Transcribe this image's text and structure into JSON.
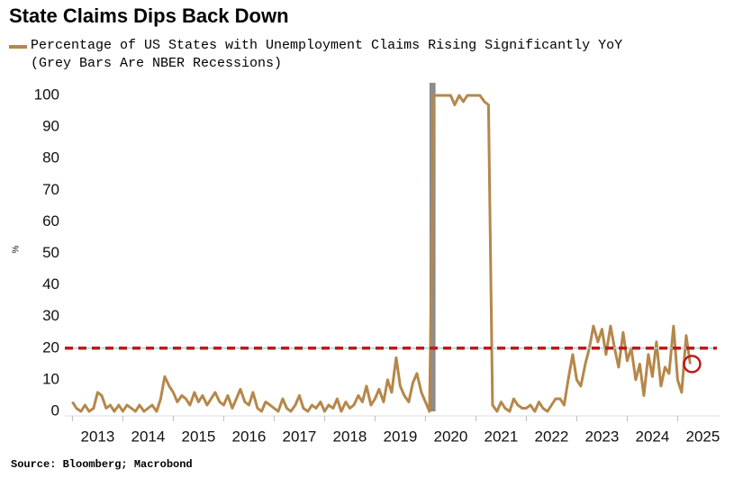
{
  "chart_data": {
    "type": "line",
    "title": "State Claims Dips Back Down",
    "subtitle": "(Grey Bars Are NBER Recessions)",
    "ylabel": "%",
    "source": "Source: Bloomberg; Macrobond",
    "recessions": [
      {
        "start": 2020.08,
        "end": 2020.2,
        "color": "#8c8c8c"
      }
    ],
    "reference_line": {
      "value": 20,
      "color": "#c0191b"
    },
    "xlim": [
      2012.85,
      2025.85
    ],
    "xticks": [
      {
        "value": 2013,
        "label": "2013"
      },
      {
        "value": 2014,
        "label": "2014"
      },
      {
        "value": 2015,
        "label": "2015"
      },
      {
        "value": 2016,
        "label": "2016"
      },
      {
        "value": 2017,
        "label": "2017"
      },
      {
        "value": 2018,
        "label": "2018"
      },
      {
        "value": 2019,
        "label": "2019"
      },
      {
        "value": 2020,
        "label": "2020"
      },
      {
        "value": 2021,
        "label": "2021"
      },
      {
        "value": 2022,
        "label": "2022"
      },
      {
        "value": 2023,
        "label": "2023"
      },
      {
        "value": 2024,
        "label": "2024"
      },
      {
        "value": 2025,
        "label": "2025"
      }
    ],
    "ylim": [
      0,
      100
    ],
    "yticks": [
      0,
      10,
      20,
      30,
      40,
      50,
      60,
      70,
      80,
      90,
      100
    ],
    "series": [
      {
        "name": "Percentage of US States with Unemployment Claims Rising Significantly YoY",
        "color": "#b5874a",
        "x": [
          2013.0,
          2013.08,
          2013.17,
          2013.25,
          2013.33,
          2013.42,
          2013.5,
          2013.58,
          2013.67,
          2013.75,
          2013.83,
          2013.92,
          2014.0,
          2014.08,
          2014.17,
          2014.25,
          2014.33,
          2014.42,
          2014.5,
          2014.58,
          2014.67,
          2014.75,
          2014.83,
          2014.92,
          2015.0,
          2015.08,
          2015.17,
          2015.25,
          2015.33,
          2015.42,
          2015.5,
          2015.58,
          2015.67,
          2015.75,
          2015.83,
          2015.92,
          2016.0,
          2016.08,
          2016.17,
          2016.25,
          2016.33,
          2016.42,
          2016.5,
          2016.58,
          2016.67,
          2016.75,
          2016.83,
          2016.92,
          2017.0,
          2017.08,
          2017.17,
          2017.25,
          2017.33,
          2017.42,
          2017.5,
          2017.58,
          2017.67,
          2017.75,
          2017.83,
          2017.92,
          2018.0,
          2018.08,
          2018.17,
          2018.25,
          2018.33,
          2018.42,
          2018.5,
          2018.58,
          2018.67,
          2018.75,
          2018.83,
          2018.92,
          2019.0,
          2019.08,
          2019.17,
          2019.25,
          2019.33,
          2019.42,
          2019.5,
          2019.58,
          2019.67,
          2019.75,
          2019.83,
          2019.92,
          2020.0,
          2020.08,
          2020.17,
          2020.25,
          2020.33,
          2020.42,
          2020.5,
          2020.58,
          2020.67,
          2020.75,
          2020.83,
          2020.92,
          2021.0,
          2021.08,
          2021.17,
          2021.25,
          2021.33,
          2021.42,
          2021.5,
          2021.58,
          2021.67,
          2021.75,
          2021.83,
          2021.92,
          2022.0,
          2022.08,
          2022.17,
          2022.25,
          2022.33,
          2022.42,
          2022.5,
          2022.58,
          2022.67,
          2022.75,
          2022.83,
          2022.92,
          2023.0,
          2023.08,
          2023.17,
          2023.25,
          2023.33,
          2023.42,
          2023.5,
          2023.58,
          2023.67,
          2023.75,
          2023.83,
          2023.92,
          2024.0,
          2024.08,
          2024.17,
          2024.25,
          2024.33,
          2024.42,
          2024.5,
          2024.58,
          2024.67,
          2024.75,
          2024.83,
          2024.92,
          2025.0,
          2025.08,
          2025.17,
          2025.25
        ],
        "values": [
          3,
          1,
          0,
          2,
          0,
          1,
          6,
          5,
          1,
          2,
          0,
          2,
          0,
          2,
          1,
          0,
          2,
          0,
          1,
          2,
          0,
          4,
          11,
          8,
          6,
          3,
          5,
          4,
          2,
          6,
          3,
          5,
          2,
          4,
          6,
          3,
          2,
          5,
          1,
          4,
          7,
          3,
          2,
          6,
          1,
          0,
          3,
          2,
          1,
          0,
          4,
          1,
          0,
          2,
          5,
          1,
          0,
          2,
          1,
          3,
          0,
          2,
          1,
          4,
          0,
          3,
          1,
          2,
          5,
          3,
          8,
          2,
          4,
          7,
          3,
          10,
          6,
          17,
          8,
          5,
          3,
          9,
          12,
          6,
          3,
          0,
          100,
          100,
          100,
          100,
          100,
          97,
          100,
          98,
          100,
          100,
          100,
          100,
          98,
          97,
          2,
          0,
          3,
          1,
          0,
          4,
          2,
          1,
          1,
          2,
          0,
          3,
          1,
          0,
          2,
          4,
          4,
          2,
          10,
          18,
          10,
          8,
          15,
          20,
          27,
          22,
          26,
          18,
          27,
          20,
          14,
          25,
          16,
          20,
          10,
          15,
          5,
          18,
          11,
          22,
          8,
          14,
          12,
          27,
          10,
          6,
          24,
          15
        ]
      }
    ]
  }
}
